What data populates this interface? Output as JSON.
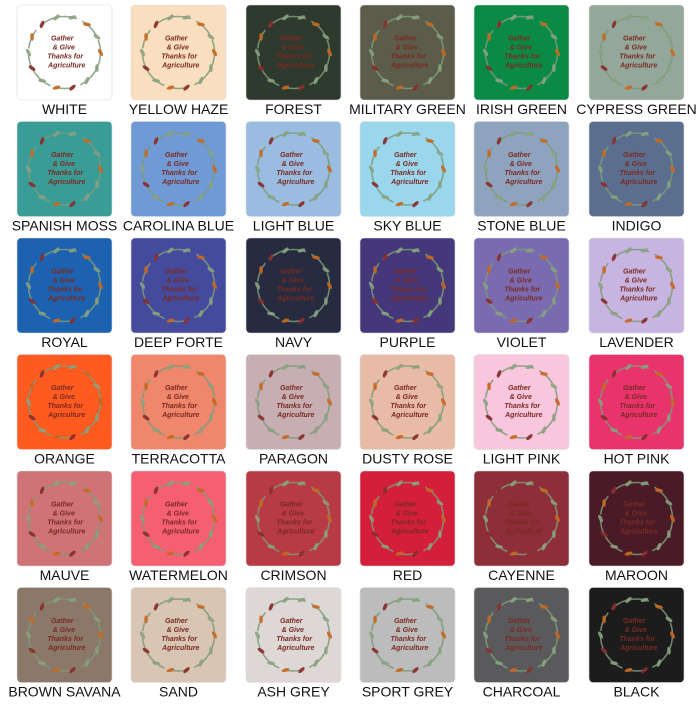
{
  "design": {
    "lines": [
      "Gather",
      "& Give",
      "Thanks for",
      "Agriculture"
    ]
  },
  "swatches": [
    {
      "name": "WHITE",
      "color": "#ffffff"
    },
    {
      "name": "YELLOW HAZE",
      "color": "#f9dfbf"
    },
    {
      "name": "FOREST",
      "color": "#2f3a2e"
    },
    {
      "name": "MILITARY GREEN",
      "color": "#5b5c49"
    },
    {
      "name": "IRISH GREEN",
      "color": "#0b8a46"
    },
    {
      "name": "CYPRESS GREEN",
      "color": "#93a89b"
    },
    {
      "name": "SPANISH MOSS",
      "color": "#3a9c97"
    },
    {
      "name": "CAROLINA BLUE",
      "color": "#6f9ad6"
    },
    {
      "name": "LIGHT BLUE",
      "color": "#99bce0"
    },
    {
      "name": "SKY BLUE",
      "color": "#9ad6ec"
    },
    {
      "name": "STONE BLUE",
      "color": "#8ea3bd"
    },
    {
      "name": "INDIGO",
      "color": "#5a6f90"
    },
    {
      "name": "ROYAL",
      "color": "#1d62b0"
    },
    {
      "name": "DEEP FORTE",
      "color": "#444a9c"
    },
    {
      "name": "NAVY",
      "color": "#262b3f"
    },
    {
      "name": "PURPLE",
      "color": "#45387a"
    },
    {
      "name": "VIOLET",
      "color": "#7a6bb0"
    },
    {
      "name": "LAVENDER",
      "color": "#c7b4e0"
    },
    {
      "name": "ORANGE",
      "color": "#ff5a1f"
    },
    {
      "name": "TERRACOTTA",
      "color": "#f0866b"
    },
    {
      "name": "PARAGON",
      "color": "#c7aeb3"
    },
    {
      "name": "DUSTY ROSE",
      "color": "#e8bba6"
    },
    {
      "name": "LIGHT PINK",
      "color": "#f8c6dd"
    },
    {
      "name": "HOT PINK",
      "color": "#e8336c"
    },
    {
      "name": "MAUVE",
      "color": "#cf7377"
    },
    {
      "name": "WATERMELON",
      "color": "#f45f72"
    },
    {
      "name": "CRIMSON",
      "color": "#b83a44"
    },
    {
      "name": "RED",
      "color": "#d31f3a"
    },
    {
      "name": "CAYENNE",
      "color": "#8e2e38"
    },
    {
      "name": "MAROON",
      "color": "#4a1b27"
    },
    {
      "name": "BROWN SAVANA",
      "color": "#8b7868"
    },
    {
      "name": "SAND",
      "color": "#d8c5b3"
    },
    {
      "name": "ASH GREY",
      "color": "#ddd8d6"
    },
    {
      "name": "SPORT GREY",
      "color": "#bcbcbc"
    },
    {
      "name": "CHARCOAL",
      "color": "#5a5a5c"
    },
    {
      "name": "BLACK",
      "color": "#1c1c1c"
    }
  ]
}
